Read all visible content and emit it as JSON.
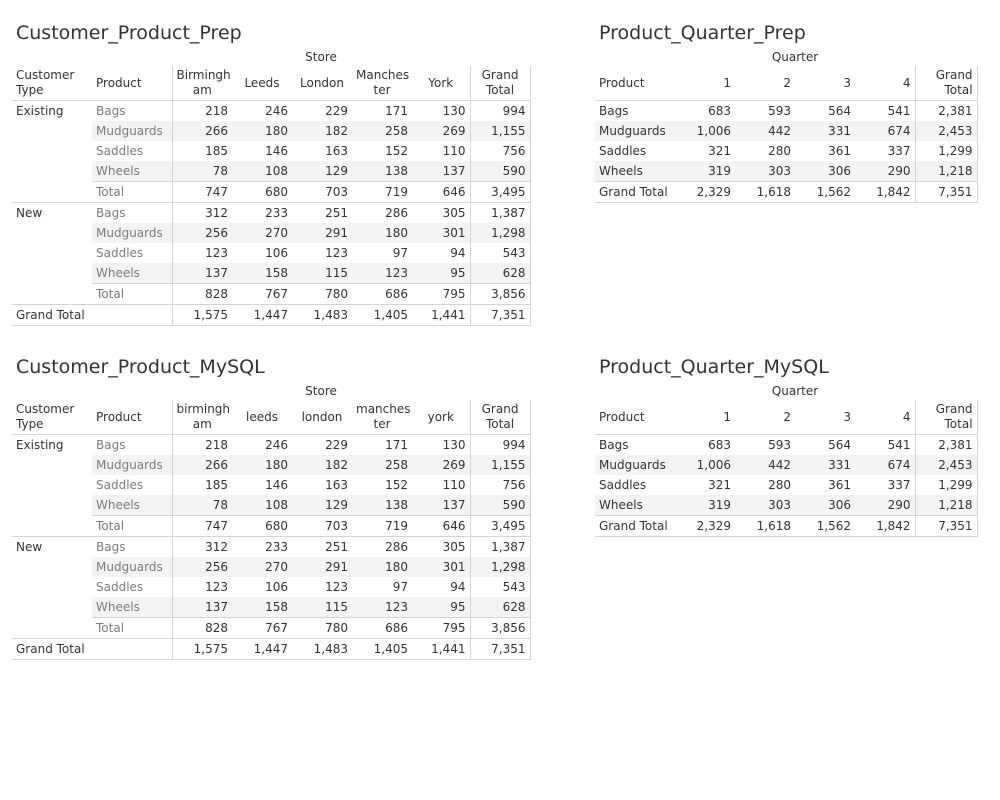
{
  "sheets": {
    "cp_prep": {
      "title": "Customer_Product_Prep",
      "group_header": "Store",
      "col_customer_type": "Customer\nType",
      "col_product": "Product",
      "stores": [
        "Birmingh\nam",
        "Leeds",
        "London",
        "Manches\nter",
        "York"
      ],
      "col_grand_total": "Grand\nTotal",
      "groups": [
        {
          "customer_type": "Existing",
          "rows": [
            {
              "product": "Bags",
              "values": [
                "218",
                "246",
                "229",
                "171",
                "130"
              ],
              "total": "994"
            },
            {
              "product": "Mudguards",
              "values": [
                "266",
                "180",
                "182",
                "258",
                "269"
              ],
              "total": "1,155"
            },
            {
              "product": "Saddles",
              "values": [
                "185",
                "146",
                "163",
                "152",
                "110"
              ],
              "total": "756"
            },
            {
              "product": "Wheels",
              "values": [
                "78",
                "108",
                "129",
                "138",
                "137"
              ],
              "total": "590"
            }
          ],
          "subtotal_label": "Total",
          "subtotal_values": [
            "747",
            "680",
            "703",
            "719",
            "646"
          ],
          "subtotal_total": "3,495"
        },
        {
          "customer_type": "New",
          "rows": [
            {
              "product": "Bags",
              "values": [
                "312",
                "233",
                "251",
                "286",
                "305"
              ],
              "total": "1,387"
            },
            {
              "product": "Mudguards",
              "values": [
                "256",
                "270",
                "291",
                "180",
                "301"
              ],
              "total": "1,298"
            },
            {
              "product": "Saddles",
              "values": [
                "123",
                "106",
                "123",
                "97",
                "94"
              ],
              "total": "543"
            },
            {
              "product": "Wheels",
              "values": [
                "137",
                "158",
                "115",
                "123",
                "95"
              ],
              "total": "628"
            }
          ],
          "subtotal_label": "Total",
          "subtotal_values": [
            "828",
            "767",
            "780",
            "686",
            "795"
          ],
          "subtotal_total": "3,856"
        }
      ],
      "grand_total_label": "Grand Total",
      "grand_total_values": [
        "1,575",
        "1,447",
        "1,483",
        "1,405",
        "1,441"
      ],
      "grand_total_total": "7,351"
    },
    "pq_prep": {
      "title": "Product_Quarter_Prep",
      "group_header": "Quarter",
      "col_product": "Product",
      "quarters": [
        "1",
        "2",
        "3",
        "4"
      ],
      "col_grand_total": "Grand\nTotal",
      "rows": [
        {
          "product": "Bags",
          "values": [
            "683",
            "593",
            "564",
            "541"
          ],
          "total": "2,381"
        },
        {
          "product": "Mudguards",
          "values": [
            "1,006",
            "442",
            "331",
            "674"
          ],
          "total": "2,453"
        },
        {
          "product": "Saddles",
          "values": [
            "321",
            "280",
            "361",
            "337"
          ],
          "total": "1,299"
        },
        {
          "product": "Wheels",
          "values": [
            "319",
            "303",
            "306",
            "290"
          ],
          "total": "1,218"
        }
      ],
      "grand_total_label": "Grand Total",
      "grand_total_values": [
        "2,329",
        "1,618",
        "1,562",
        "1,842"
      ],
      "grand_total_total": "7,351"
    },
    "cp_mysql": {
      "title": "Customer_Product_MySQL",
      "group_header": "Store",
      "col_customer_type": "Customer\nType",
      "col_product": "Product",
      "stores": [
        "birmingh\nam",
        "leeds",
        "london",
        "manches\nter",
        "york"
      ],
      "col_grand_total": "Grand\nTotal",
      "groups": [
        {
          "customer_type": "Existing",
          "rows": [
            {
              "product": "Bags",
              "values": [
                "218",
                "246",
                "229",
                "171",
                "130"
              ],
              "total": "994"
            },
            {
              "product": "Mudguards",
              "values": [
                "266",
                "180",
                "182",
                "258",
                "269"
              ],
              "total": "1,155"
            },
            {
              "product": "Saddles",
              "values": [
                "185",
                "146",
                "163",
                "152",
                "110"
              ],
              "total": "756"
            },
            {
              "product": "Wheels",
              "values": [
                "78",
                "108",
                "129",
                "138",
                "137"
              ],
              "total": "590"
            }
          ],
          "subtotal_label": "Total",
          "subtotal_values": [
            "747",
            "680",
            "703",
            "719",
            "646"
          ],
          "subtotal_total": "3,495"
        },
        {
          "customer_type": "New",
          "rows": [
            {
              "product": "Bags",
              "values": [
                "312",
                "233",
                "251",
                "286",
                "305"
              ],
              "total": "1,387"
            },
            {
              "product": "Mudguards",
              "values": [
                "256",
                "270",
                "291",
                "180",
                "301"
              ],
              "total": "1,298"
            },
            {
              "product": "Saddles",
              "values": [
                "123",
                "106",
                "123",
                "97",
                "94"
              ],
              "total": "543"
            },
            {
              "product": "Wheels",
              "values": [
                "137",
                "158",
                "115",
                "123",
                "95"
              ],
              "total": "628"
            }
          ],
          "subtotal_label": "Total",
          "subtotal_values": [
            "828",
            "767",
            "780",
            "686",
            "795"
          ],
          "subtotal_total": "3,856"
        }
      ],
      "grand_total_label": "Grand Total",
      "grand_total_values": [
        "1,575",
        "1,447",
        "1,483",
        "1,405",
        "1,441"
      ],
      "grand_total_total": "7,351"
    },
    "pq_mysql": {
      "title": "Product_Quarter_MySQL",
      "group_header": "Quarter",
      "col_product": "Product",
      "quarters": [
        "1",
        "2",
        "3",
        "4"
      ],
      "col_grand_total": "Grand\nTotal",
      "rows": [
        {
          "product": "Bags",
          "values": [
            "683",
            "593",
            "564",
            "541"
          ],
          "total": "2,381"
        },
        {
          "product": "Mudguards",
          "values": [
            "1,006",
            "442",
            "331",
            "674"
          ],
          "total": "2,453"
        },
        {
          "product": "Saddles",
          "values": [
            "321",
            "280",
            "361",
            "337"
          ],
          "total": "1,299"
        },
        {
          "product": "Wheels",
          "values": [
            "319",
            "303",
            "306",
            "290"
          ],
          "total": "1,218"
        }
      ],
      "grand_total_label": "Grand Total",
      "grand_total_values": [
        "2,329",
        "1,618",
        "1,562",
        "1,842"
      ],
      "grand_total_total": "7,351"
    }
  }
}
